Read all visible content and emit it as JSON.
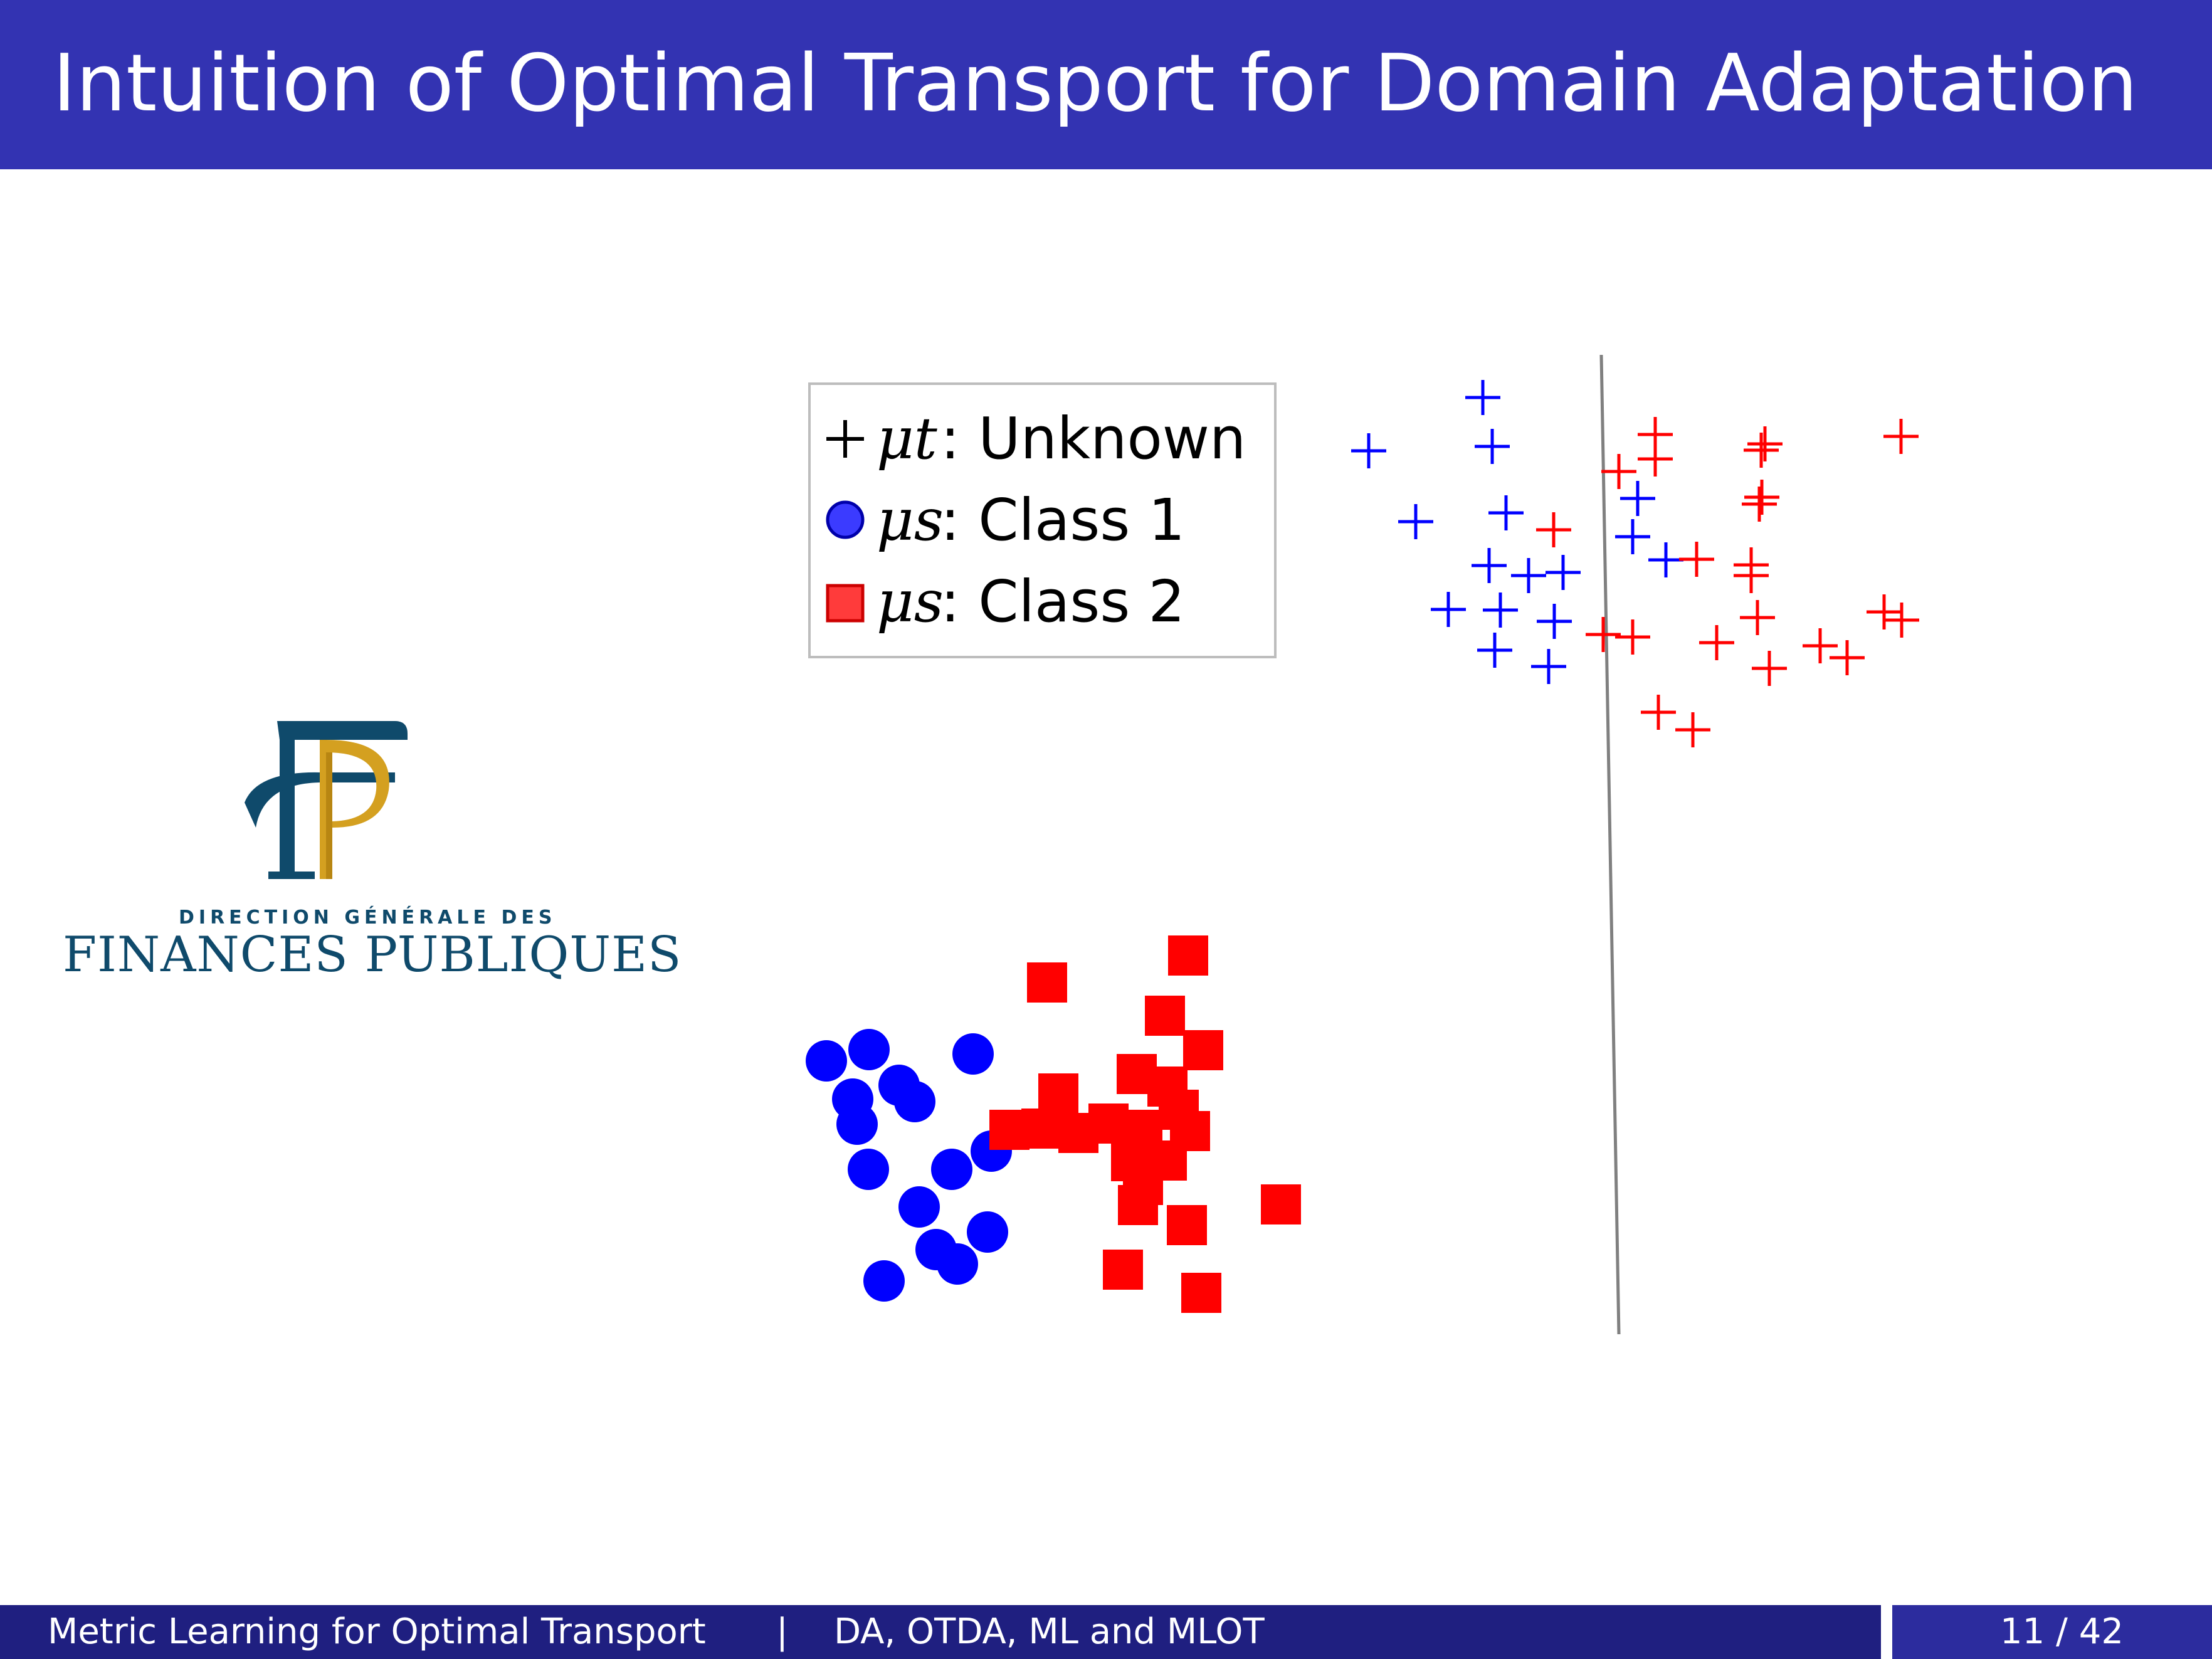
{
  "slide": {
    "title": "Intuition of Optimal Transport for Domain Adaptation"
  },
  "legend": {
    "items": [
      {
        "symbol": "+",
        "label_math": "μt",
        "label": ": Unknown"
      },
      {
        "symbol": "●",
        "label_math": "μs",
        "label": ": Class 1"
      },
      {
        "symbol": "■",
        "label_math": "μs",
        "label": ": Class 2"
      }
    ]
  },
  "logo": {
    "small_text": "DIRECTION GÉNÉRALE DES",
    "big_text": "FINANCES PUBLIQUES"
  },
  "footer": {
    "left": "Metric Learning for Optimal Transport",
    "separator": "|",
    "section": "DA, OTDA, ML and MLOT",
    "page": "11 / 42"
  },
  "colors": {
    "header": "#3333b2",
    "footer_left": "#1f1f80",
    "footer_right": "#2c2c9e",
    "class1": "#0000ff",
    "class2": "#ff0000",
    "boundary": "#808080"
  },
  "chart_data": {
    "type": "scatter",
    "series": [
      {
        "name": "μs: Class 1",
        "marker": "circle",
        "color": "#0000ff",
        "points": [
          [
            1318,
            1692
          ],
          [
            1386,
            1674
          ],
          [
            1552,
            1681
          ],
          [
            1434,
            1731
          ],
          [
            1360,
            1753
          ],
          [
            1459,
            1757
          ],
          [
            1367,
            1793
          ],
          [
            1385,
            1865
          ],
          [
            1518,
            1865
          ],
          [
            1581,
            1836
          ],
          [
            1466,
            1925
          ],
          [
            1575,
            1965
          ],
          [
            1493,
            1993
          ],
          [
            1527,
            2016
          ],
          [
            1410,
            2043
          ]
        ]
      },
      {
        "name": "μs: Class 2",
        "marker": "square",
        "color": "#ff0000",
        "points": [
          [
            1895,
            1524
          ],
          [
            1670,
            1567
          ],
          [
            1858,
            1620
          ],
          [
            1919,
            1675
          ],
          [
            1813,
            1713
          ],
          [
            1688,
            1744
          ],
          [
            1862,
            1733
          ],
          [
            1880,
            1770
          ],
          [
            1610,
            1802
          ],
          [
            1661,
            1800
          ],
          [
            1720,
            1807
          ],
          [
            1768,
            1792
          ],
          [
            1822,
            1802
          ],
          [
            1898,
            1804
          ],
          [
            1804,
            1852
          ],
          [
            1861,
            1851
          ],
          [
            1823,
            1890
          ],
          [
            1815,
            1922
          ],
          [
            2043,
            1921
          ],
          [
            1893,
            1954
          ],
          [
            1791,
            2025
          ],
          [
            1916,
            2062
          ]
        ]
      },
      {
        "name": "μt: Unknown (class 1)",
        "marker": "plus",
        "color": "#0000ff",
        "points": [
          [
            2365,
            634
          ],
          [
            2183,
            719
          ],
          [
            2380,
            712
          ],
          [
            2612,
            795
          ],
          [
            2258,
            832
          ],
          [
            2402,
            818
          ],
          [
            2604,
            856
          ],
          [
            2375,
            902
          ],
          [
            2438,
            918
          ],
          [
            2493,
            913
          ],
          [
            2657,
            893
          ],
          [
            2310,
            972
          ],
          [
            2393,
            973
          ],
          [
            2479,
            991
          ],
          [
            2384,
            1037
          ],
          [
            2470,
            1063
          ]
        ]
      },
      {
        "name": "μt: Unknown (class 2)",
        "marker": "plus",
        "color": "#ff0000",
        "points": [
          [
            2640,
            693
          ],
          [
            3032,
            696
          ],
          [
            2815,
            708
          ],
          [
            2582,
            752
          ],
          [
            2640,
            732
          ],
          [
            2809,
            718
          ],
          [
            2810,
            793
          ],
          [
            2806,
            804
          ],
          [
            2478,
            845
          ],
          [
            2706,
            892
          ],
          [
            2793,
            901
          ],
          [
            2793,
            918
          ],
          [
            2803,
            985
          ],
          [
            2557,
            1012
          ],
          [
            2604,
            1016
          ],
          [
            2738,
            1025
          ],
          [
            3005,
            976
          ],
          [
            3033,
            989
          ],
          [
            2903,
            1030
          ],
          [
            2946,
            1049
          ],
          [
            2822,
            1066
          ],
          [
            2645,
            1136
          ],
          [
            2700,
            1164
          ]
        ]
      }
    ],
    "decision_boundary": [
      [
        2554,
        566
      ],
      [
        2582,
        2128
      ]
    ],
    "axes": "hidden"
  }
}
